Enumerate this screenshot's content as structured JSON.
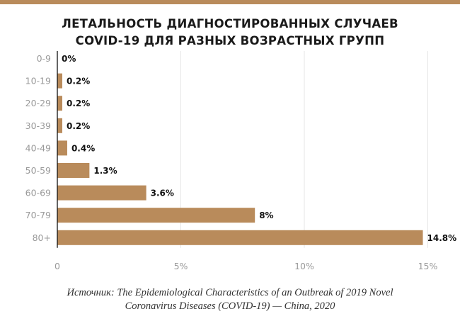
{
  "colors": {
    "accent": "#B98B5B",
    "grid": "#E6E6E6",
    "axis": "#111111",
    "label": "#9A9A9A"
  },
  "chart_data": {
    "type": "bar",
    "orientation": "horizontal",
    "title_lines": [
      "ЛЕТАЛЬНОСТЬ ДИАГНОСТИРОВАННЫХ СЛУЧАЕВ",
      "COVID-19 ДЛЯ РАЗНЫХ ВОЗРАСТНЫХ ГРУПП"
    ],
    "categories": [
      "0-9",
      "10-19",
      "20-29",
      "30-39",
      "40-49",
      "50-59",
      "60-69",
      "70-79",
      "80+"
    ],
    "values": [
      0,
      0.2,
      0.2,
      0.2,
      0.4,
      1.3,
      3.6,
      8,
      14.8
    ],
    "value_labels": [
      "0%",
      "0.2%",
      "0.2%",
      "0.2%",
      "0.4%",
      "1.3%",
      "3.6%",
      "8%",
      "14.8%"
    ],
    "xlim": [
      0,
      15
    ],
    "xticks": [
      0,
      5,
      10,
      15
    ],
    "xtick_labels": [
      "0",
      "5%",
      "10%",
      "15%"
    ],
    "grid": "vertical"
  },
  "source": {
    "line1": "Источник: The Epidemiological Characteristics of an Outbreak of 2019 Novel",
    "line2": "Coronavirus Diseases (COVID-19) — China, 2020"
  }
}
